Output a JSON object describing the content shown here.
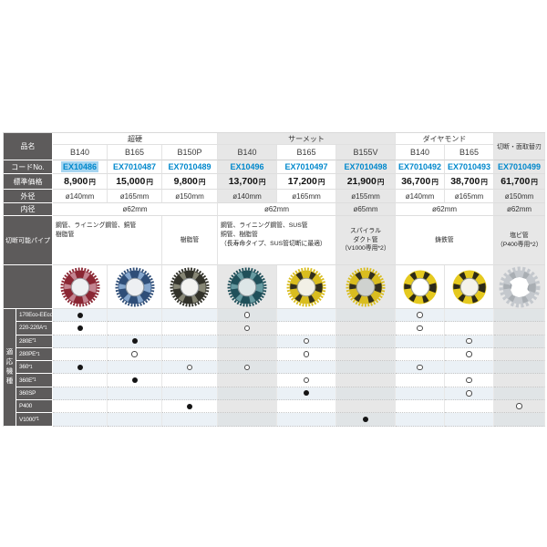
{
  "colors": {
    "label_bg": "#5d5b5b",
    "shade": "#e7e7e7",
    "row_tint": "#ebf1f6",
    "code_blue": "#0088cc",
    "highlight": "#a6d5f0"
  },
  "table": {
    "row_labels": {
      "hinmei": "品名",
      "code": "コードNo.",
      "price": "標準価格",
      "outer": "外径",
      "inner": "内径",
      "pipes": "切断可能パイプ",
      "machines": "適応機種"
    },
    "groups": [
      {
        "label": "超硬"
      },
      {
        "label": "サーメット"
      },
      {
        "label": "ダイヤモンド"
      }
    ],
    "last_header": "切断・面取替刃",
    "yen": "円",
    "cols": [
      {
        "model": "B140",
        "code": "EX10486",
        "price": "8,900",
        "outer": "ø140mm"
      },
      {
        "model": "B165",
        "code": "EX7010487",
        "price": "15,000",
        "outer": "ø165mm"
      },
      {
        "model": "B150P",
        "code": "EX7010489",
        "price": "9,800",
        "outer": "ø150mm"
      },
      {
        "model": "B140",
        "code": "EX10496",
        "price": "13,700",
        "outer": "ø140mm"
      },
      {
        "model": "B165",
        "code": "EX7010497",
        "price": "17,200",
        "outer": "ø165mm"
      },
      {
        "model": "B155V",
        "code": "EX7010498",
        "price": "21,900",
        "outer": "ø155mm"
      },
      {
        "model": "B140",
        "code": "EX7010492",
        "price": "36,700",
        "outer": "ø140mm"
      },
      {
        "model": "B165",
        "code": "EX7010493",
        "price": "38,700",
        "outer": "ø165mm"
      },
      {
        "code": "EX7010499",
        "price": "61,700",
        "outer": "ø150mm"
      }
    ],
    "inner_cells": [
      {
        "label": "ø62mm"
      },
      {
        "label": "ø62mm"
      },
      {
        "label": "ø65mm"
      },
      {
        "label": "ø62mm"
      },
      {
        "label": "ø62mm"
      }
    ],
    "pipe_cells": [
      {
        "text": "鋼管、ライニング鋼管、銅管\n樹脂管"
      },
      {
        "text": "樹脂管"
      },
      {
        "text": "鋼管、ライニング鋼管、SUS管\n銅管、樹脂管\n（長寿命タイプ、SUS管切断に最適）"
      },
      {
        "text": "スパイラル\nダクト管\n（V1000専用*2）"
      },
      {
        "text": "鋳鉄管"
      },
      {
        "text": "塩ビ管\n（P400専用*2）"
      }
    ],
    "machines": {
      "side_label": "適応機種",
      "rows": [
        {
          "label": "170Eco-EEco",
          "sup": "",
          "marks": [
            "filled",
            "",
            "",
            "open",
            "",
            "",
            "open",
            "",
            ""
          ]
        },
        {
          "label": "220-220A",
          "sup": "*1",
          "marks": [
            "filled",
            "",
            "",
            "open",
            "",
            "",
            "open",
            "",
            ""
          ]
        },
        {
          "label": "280E",
          "sup": "*1",
          "marks": [
            "",
            "filled",
            "",
            "",
            "open",
            "",
            "",
            "open",
            ""
          ]
        },
        {
          "label": "280PE",
          "sup": "*1",
          "marks": [
            "",
            "open",
            "",
            "",
            "open",
            "",
            "",
            "open",
            ""
          ]
        },
        {
          "label": "360",
          "sup": "*1",
          "marks": [
            "filled",
            "",
            "open",
            "open",
            "",
            "",
            "open",
            "",
            ""
          ]
        },
        {
          "label": "360E",
          "sup": "*1",
          "marks": [
            "",
            "filled",
            "",
            "",
            "open",
            "",
            "",
            "open",
            ""
          ]
        },
        {
          "label": "360SP",
          "sup": "",
          "marks": [
            "",
            "",
            "",
            "",
            "filled",
            "",
            "",
            "open",
            ""
          ]
        },
        {
          "label": "P400",
          "sup": "",
          "marks": [
            "",
            "",
            "filled",
            "",
            "",
            "",
            "",
            "",
            "open"
          ]
        },
        {
          "label": "V1000",
          "sup": "*1",
          "marks": [
            "",
            "",
            "",
            "",
            "",
            "filled",
            "",
            "",
            ""
          ]
        }
      ]
    }
  },
  "blades": [
    {
      "name": "blade-b140-carbide",
      "ring": "#8b2633",
      "center": "#eef0f2",
      "accent": "#c98f9a",
      "variant": "gear"
    },
    {
      "name": "blade-b165-carbide",
      "ring": "#2f4e78",
      "center": "#edeff2",
      "accent": "#8fb0d6",
      "variant": "gear"
    },
    {
      "name": "blade-b150p",
      "ring": "#32322a",
      "center": "#f3f3f1",
      "accent": "#8f8f7d",
      "variant": "gear"
    },
    {
      "name": "blade-b140-cermet",
      "ring": "#20505a",
      "center": "#dde6e7",
      "accent": "#6fa2a8",
      "variant": "gear"
    },
    {
      "name": "blade-b165-cermet",
      "ring": "#d9bd1f",
      "center": "#f2f0e6",
      "accent": "#1f1f1f",
      "variant": "gear"
    },
    {
      "name": "blade-b155v",
      "ring": "#d9bd1f",
      "center": "#cfd2cf",
      "accent": "#1f1f1f",
      "variant": "gear"
    },
    {
      "name": "blade-b140-diamond",
      "ring": "#e5c91e",
      "center": "#ffffff",
      "accent": "#171717",
      "variant": "smooth"
    },
    {
      "name": "blade-b165-diamond",
      "ring": "#e5c91e",
      "center": "#f4f2ea",
      "accent": "#171717",
      "variant": "smooth"
    },
    {
      "name": "blade-replacement-saw",
      "ring": "#c4c8cd",
      "center": "#ffffff",
      "accent": "#8d939a",
      "variant": "saw"
    }
  ]
}
